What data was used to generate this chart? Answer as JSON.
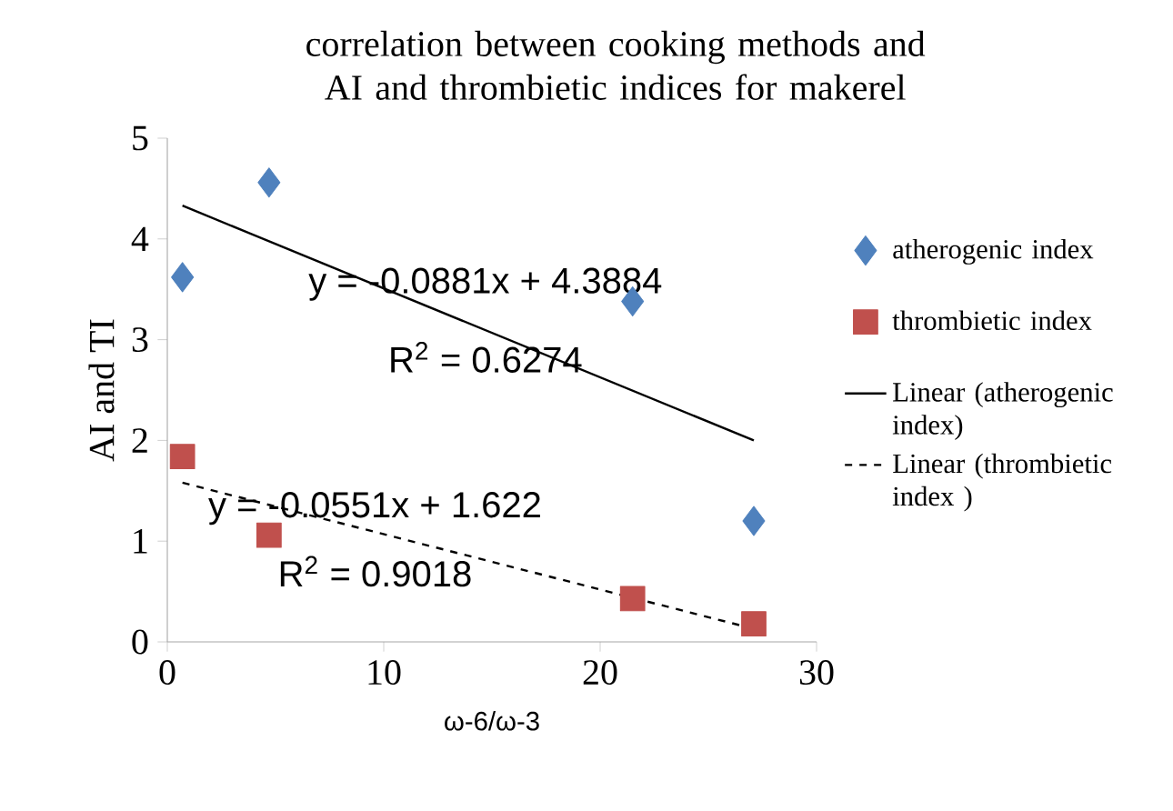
{
  "chart_data": {
    "type": "scatter",
    "title": "correlation between cooking methods and AI and thrombietic indices for makerel",
    "xlabel": "ω-6/ω-3",
    "ylabel": "AI and TI",
    "xlim": [
      0,
      30
    ],
    "xticks": [
      0,
      10,
      20,
      30
    ],
    "ylim": [
      0,
      5
    ],
    "yticks": [
      0,
      1,
      2,
      3,
      4,
      5
    ],
    "grid": false,
    "legend": "right",
    "series": [
      {
        "name": "atherogenic index",
        "marker": "diamond",
        "color": "#4f81bd",
        "x": [
          0.7,
          4.7,
          21.5,
          27.1
        ],
        "values": [
          3.62,
          4.56,
          3.38,
          1.2
        ]
      },
      {
        "name": "thrombietic index",
        "marker": "square",
        "color": "#c0504d",
        "x": [
          0.7,
          4.7,
          21.5,
          27.1
        ],
        "values": [
          1.84,
          1.06,
          0.43,
          0.18
        ]
      },
      {
        "name": "Linear (atherogenic index)",
        "type": "line",
        "marker": "none",
        "line_style": "solid",
        "color": "#000000",
        "x": [
          0.7,
          27.1
        ],
        "values": [
          4.33,
          2.0
        ]
      },
      {
        "name": "Linear (thrombietic index )",
        "type": "line",
        "marker": "none",
        "line_style": "dashed",
        "color": "#000000",
        "x": [
          0.7,
          27.1
        ],
        "values": [
          1.58,
          0.13
        ]
      }
    ],
    "annotations": [
      "y = -0.0881x + 4.3884",
      "R$^{2}$ = 0.6274",
      "y = -0.0551x + 1.622",
      "R$^{2}$ = 0.9018"
    ]
  }
}
